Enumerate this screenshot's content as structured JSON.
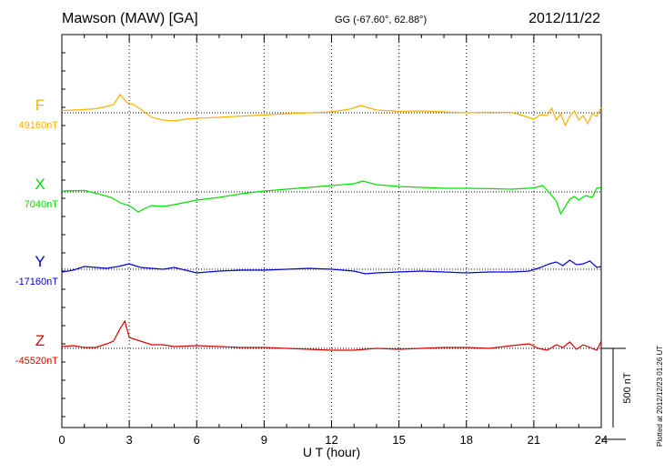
{
  "header": {
    "station": "Mawson (MAW)  [GA]",
    "coords": "GG (-67.60°,  62.88°)",
    "date": "2012/11/22"
  },
  "footer": {
    "plotted": "Plotted at 2012/12/23 01:26 UT"
  },
  "scale_bar": {
    "label": "500 nT",
    "value_nT": 500
  },
  "colors": {
    "F": "#ffb000",
    "X": "#00e000",
    "Y": "#0000e0",
    "Z": "#e00000",
    "axis": "#000000"
  },
  "chart_data": {
    "type": "line",
    "title": "Mawson (MAW)  [GA]",
    "xlabel": "U T (hour)",
    "xlim": [
      0,
      24
    ],
    "x_ticks": [
      "0",
      "3",
      "6",
      "9",
      "12",
      "15",
      "18",
      "21",
      "24"
    ],
    "grid": "dotted vertical every 3 h",
    "series": [
      {
        "name": "F",
        "label": "F",
        "baseline": "49160nT",
        "baseline_nT": 49160,
        "points": [
          [
            0,
            -12
          ],
          [
            0.5,
            -15
          ],
          [
            1,
            -18
          ],
          [
            1.5,
            -22
          ],
          [
            2,
            -35
          ],
          [
            2.3,
            -45
          ],
          [
            2.6,
            -100
          ],
          [
            2.9,
            -55
          ],
          [
            3.2,
            -45
          ],
          [
            3.5,
            -20
          ],
          [
            4,
            25
          ],
          [
            4.5,
            40
          ],
          [
            5,
            45
          ],
          [
            5.5,
            35
          ],
          [
            6,
            30
          ],
          [
            7,
            25
          ],
          [
            8,
            18
          ],
          [
            9,
            12
          ],
          [
            10,
            5
          ],
          [
            11,
            0
          ],
          [
            12,
            -5
          ],
          [
            12.8,
            -20
          ],
          [
            13.3,
            -40
          ],
          [
            14,
            -15
          ],
          [
            15,
            -8
          ],
          [
            16,
            -10
          ],
          [
            17,
            -5
          ],
          [
            18,
            0
          ],
          [
            19,
            -3
          ],
          [
            20,
            -2
          ],
          [
            20.5,
            15
          ],
          [
            21,
            35
          ],
          [
            21.3,
            10
          ],
          [
            21.6,
            15
          ],
          [
            21.8,
            -25
          ],
          [
            22,
            40
          ],
          [
            22.2,
            5
          ],
          [
            22.4,
            70
          ],
          [
            22.6,
            20
          ],
          [
            22.8,
            -10
          ],
          [
            23,
            40
          ],
          [
            23.2,
            15
          ],
          [
            23.4,
            60
          ],
          [
            23.6,
            5
          ],
          [
            23.8,
            20
          ],
          [
            24,
            -30
          ]
        ]
      },
      {
        "name": "X",
        "label": "X",
        "baseline": "7040nT",
        "baseline_nT": 7040,
        "points": [
          [
            0,
            -5
          ],
          [
            1,
            -8
          ],
          [
            1.6,
            10
          ],
          [
            2.2,
            30
          ],
          [
            2.6,
            60
          ],
          [
            3,
            75
          ],
          [
            3.4,
            110
          ],
          [
            3.7,
            90
          ],
          [
            4,
            75
          ],
          [
            4.5,
            80
          ],
          [
            5,
            70
          ],
          [
            6,
            45
          ],
          [
            7,
            30
          ],
          [
            8,
            10
          ],
          [
            9,
            -5
          ],
          [
            10,
            -15
          ],
          [
            11,
            -25
          ],
          [
            12,
            -35
          ],
          [
            13,
            -45
          ],
          [
            13.4,
            -60
          ],
          [
            14,
            -40
          ],
          [
            15,
            -30
          ],
          [
            16,
            -25
          ],
          [
            17,
            -20
          ],
          [
            18,
            -20
          ],
          [
            19,
            -18
          ],
          [
            20,
            -15
          ],
          [
            21,
            -22
          ],
          [
            21.4,
            -35
          ],
          [
            21.8,
            20
          ],
          [
            22,
            50
          ],
          [
            22.2,
            120
          ],
          [
            22.4,
            80
          ],
          [
            22.6,
            40
          ],
          [
            22.8,
            25
          ],
          [
            23,
            45
          ],
          [
            23.3,
            20
          ],
          [
            23.6,
            30
          ],
          [
            23.8,
            -20
          ],
          [
            24,
            -25
          ]
        ]
      },
      {
        "name": "Y",
        "label": "Y",
        "baseline": "-17160nT",
        "baseline_nT": -17160,
        "points": [
          [
            0,
            15
          ],
          [
            0.5,
            5
          ],
          [
            1,
            -15
          ],
          [
            1.5,
            -10
          ],
          [
            2,
            -5
          ],
          [
            2.5,
            -15
          ],
          [
            3,
            -30
          ],
          [
            3.5,
            -10
          ],
          [
            4,
            -5
          ],
          [
            4.5,
            0
          ],
          [
            5,
            -10
          ],
          [
            6,
            20
          ],
          [
            7,
            10
          ],
          [
            8,
            5
          ],
          [
            9,
            5
          ],
          [
            10,
            0
          ],
          [
            11,
            -5
          ],
          [
            12,
            0
          ],
          [
            13,
            10
          ],
          [
            13.5,
            25
          ],
          [
            14,
            20
          ],
          [
            15,
            15
          ],
          [
            16,
            10
          ],
          [
            17,
            15
          ],
          [
            18,
            20
          ],
          [
            19,
            15
          ],
          [
            20,
            15
          ],
          [
            20.8,
            10
          ],
          [
            21.3,
            -10
          ],
          [
            21.7,
            -30
          ],
          [
            22,
            -40
          ],
          [
            22.3,
            -20
          ],
          [
            22.6,
            -50
          ],
          [
            22.9,
            -25
          ],
          [
            23.2,
            -30
          ],
          [
            23.5,
            -45
          ],
          [
            23.8,
            -10
          ],
          [
            24,
            -15
          ]
        ]
      },
      {
        "name": "Z",
        "label": "Z",
        "baseline": "-45520nT",
        "baseline_nT": -45520,
        "points": [
          [
            0,
            -10
          ],
          [
            0.5,
            -15
          ],
          [
            1,
            -5
          ],
          [
            1.5,
            -5
          ],
          [
            2,
            -25
          ],
          [
            2.3,
            -40
          ],
          [
            2.6,
            -110
          ],
          [
            2.8,
            -150
          ],
          [
            3,
            -60
          ],
          [
            3.5,
            -40
          ],
          [
            4,
            -20
          ],
          [
            4.5,
            -20
          ],
          [
            5,
            -10
          ],
          [
            6,
            -15
          ],
          [
            7,
            -10
          ],
          [
            8,
            -5
          ],
          [
            9,
            -5
          ],
          [
            10,
            0
          ],
          [
            11,
            5
          ],
          [
            12,
            10
          ],
          [
            13,
            10
          ],
          [
            14,
            0
          ],
          [
            15,
            5
          ],
          [
            16,
            0
          ],
          [
            17,
            -5
          ],
          [
            18,
            -5
          ],
          [
            19,
            0
          ],
          [
            20,
            -15
          ],
          [
            20.8,
            -25
          ],
          [
            21.2,
            0
          ],
          [
            21.6,
            10
          ],
          [
            22,
            -20
          ],
          [
            22.3,
            -5
          ],
          [
            22.6,
            -35
          ],
          [
            22.9,
            5
          ],
          [
            23.2,
            -20
          ],
          [
            23.5,
            -5
          ],
          [
            23.8,
            10
          ],
          [
            24,
            -40
          ]
        ]
      }
    ]
  }
}
